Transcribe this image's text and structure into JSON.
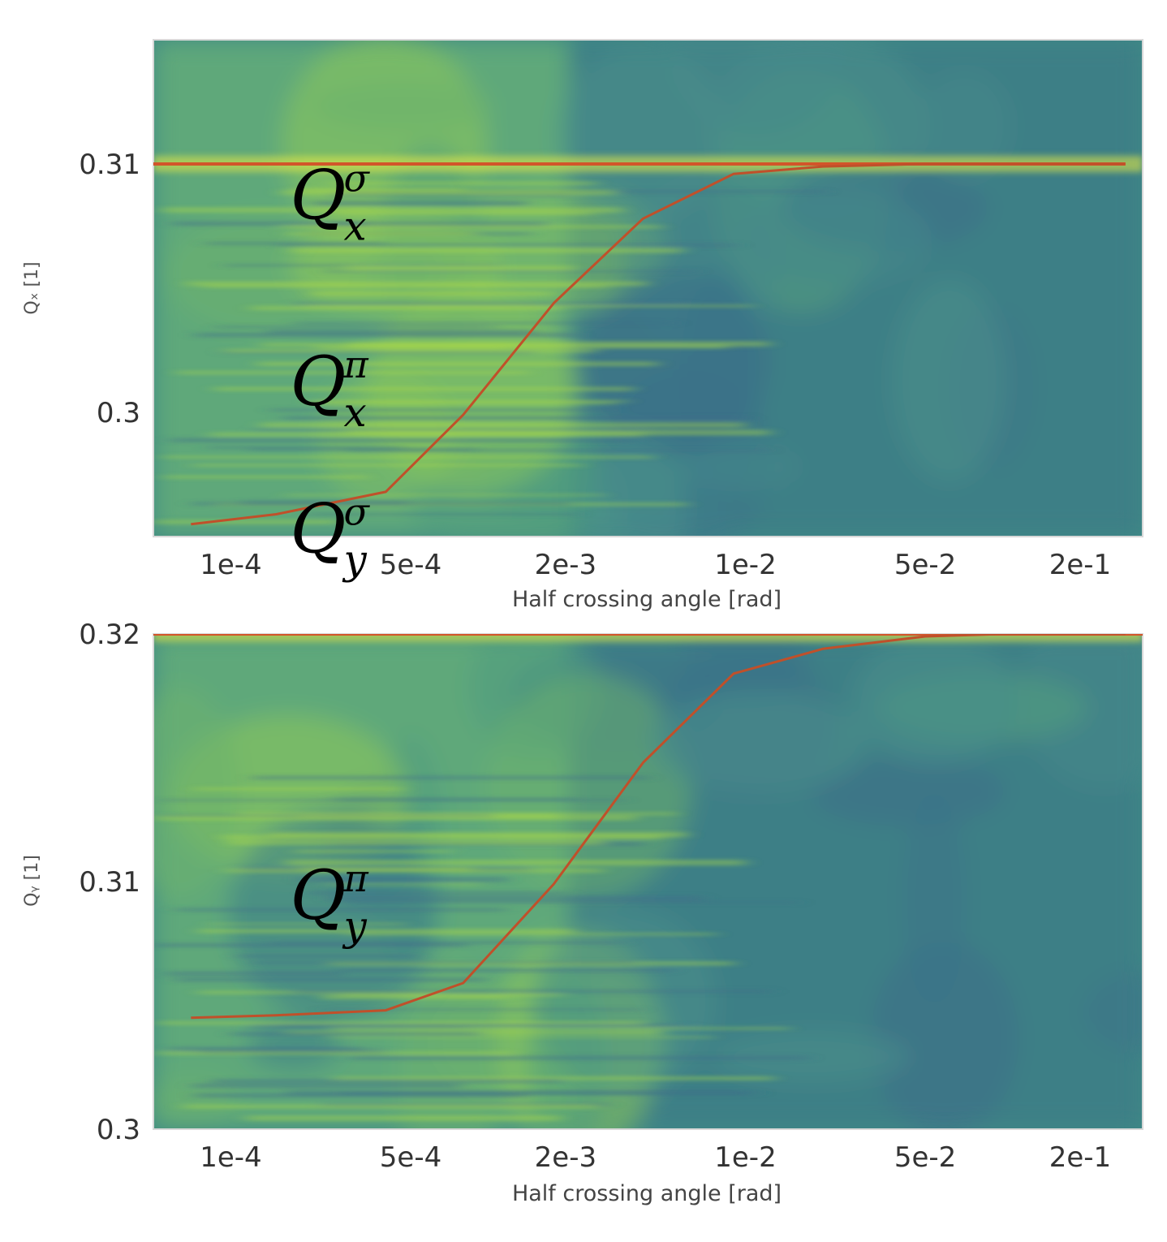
{
  "chart_data": [
    {
      "type": "heatmap",
      "xlabel": "Half crossing angle [rad]",
      "ylabel": "Qₓ [1]",
      "x_scale": "log",
      "xlim": [
        5e-05,
        0.35
      ],
      "ylim": [
        0.295,
        0.315
      ],
      "x_ticks": [
        {
          "value": 0.0001,
          "label": "1e-4"
        },
        {
          "value": 0.0005,
          "label": "5e-4"
        },
        {
          "value": 0.002,
          "label": "2e-3"
        },
        {
          "value": 0.01,
          "label": "1e-2"
        },
        {
          "value": 0.05,
          "label": "5e-2"
        },
        {
          "value": 0.2,
          "label": "2e-1"
        }
      ],
      "y_ticks": [
        {
          "value": 0.3,
          "label": "0.3"
        },
        {
          "value": 0.31,
          "label": "0.31"
        }
      ],
      "grid": false,
      "series": [
        {
          "color": "#d2552a",
          "x": [
            5e-05,
            0.3
          ],
          "y": [
            0.31,
            0.31
          ]
        },
        {
          "color": "#c0502a",
          "x": [
            7e-05,
            0.00015,
            0.0004,
            0.0008,
            0.0018,
            0.004,
            0.009,
            0.02,
            0.05,
            0.3
          ],
          "y": [
            0.2955,
            0.2959,
            0.2968,
            0.2999,
            0.3044,
            0.3078,
            0.3096,
            0.3099,
            0.31,
            0.31
          ]
        }
      ],
      "annotations": [
        {
          "base": "Q",
          "sup": "σ",
          "sub": "x",
          "x": 0.00017,
          "y": 0.3078
        },
        {
          "base": "Q",
          "sup": "π",
          "sub": "x",
          "x": 0.00017,
          "y": 0.3003
        }
      ]
    },
    {
      "type": "heatmap",
      "xlabel": "Half crossing angle [rad]",
      "ylabel": "Qᵧ [1]",
      "x_scale": "log",
      "xlim": [
        5e-05,
        0.35
      ],
      "ylim": [
        0.3,
        0.32
      ],
      "x_ticks": [
        {
          "value": 0.0001,
          "label": "1e-4"
        },
        {
          "value": 0.0005,
          "label": "5e-4"
        },
        {
          "value": 0.002,
          "label": "2e-3"
        },
        {
          "value": 0.01,
          "label": "1e-2"
        },
        {
          "value": 0.05,
          "label": "5e-2"
        },
        {
          "value": 0.2,
          "label": "2e-1"
        }
      ],
      "y_ticks": [
        {
          "value": 0.3,
          "label": "0.3"
        },
        {
          "value": 0.31,
          "label": "0.31"
        },
        {
          "value": 0.32,
          "label": "0.32"
        }
      ],
      "grid": false,
      "series": [
        {
          "color": "#d2552a",
          "x": [
            5e-05,
            0.35
          ],
          "y": [
            0.32,
            0.32
          ]
        },
        {
          "color": "#c0502a",
          "x": [
            7e-05,
            0.00015,
            0.0004,
            0.0008,
            0.0018,
            0.004,
            0.009,
            0.02,
            0.05,
            0.1,
            0.3
          ],
          "y": [
            0.3045,
            0.3046,
            0.3048,
            0.3059,
            0.3099,
            0.3148,
            0.3184,
            0.3194,
            0.3199,
            0.32,
            0.32
          ]
        }
      ],
      "annotations": [
        {
          "base": "Q",
          "sup": "σ",
          "sub": "y",
          "x": 0.00017,
          "y": 0.3233
        },
        {
          "base": "Q",
          "sup": "π",
          "sub": "y",
          "x": 0.00017,
          "y": 0.3085
        }
      ]
    }
  ]
}
